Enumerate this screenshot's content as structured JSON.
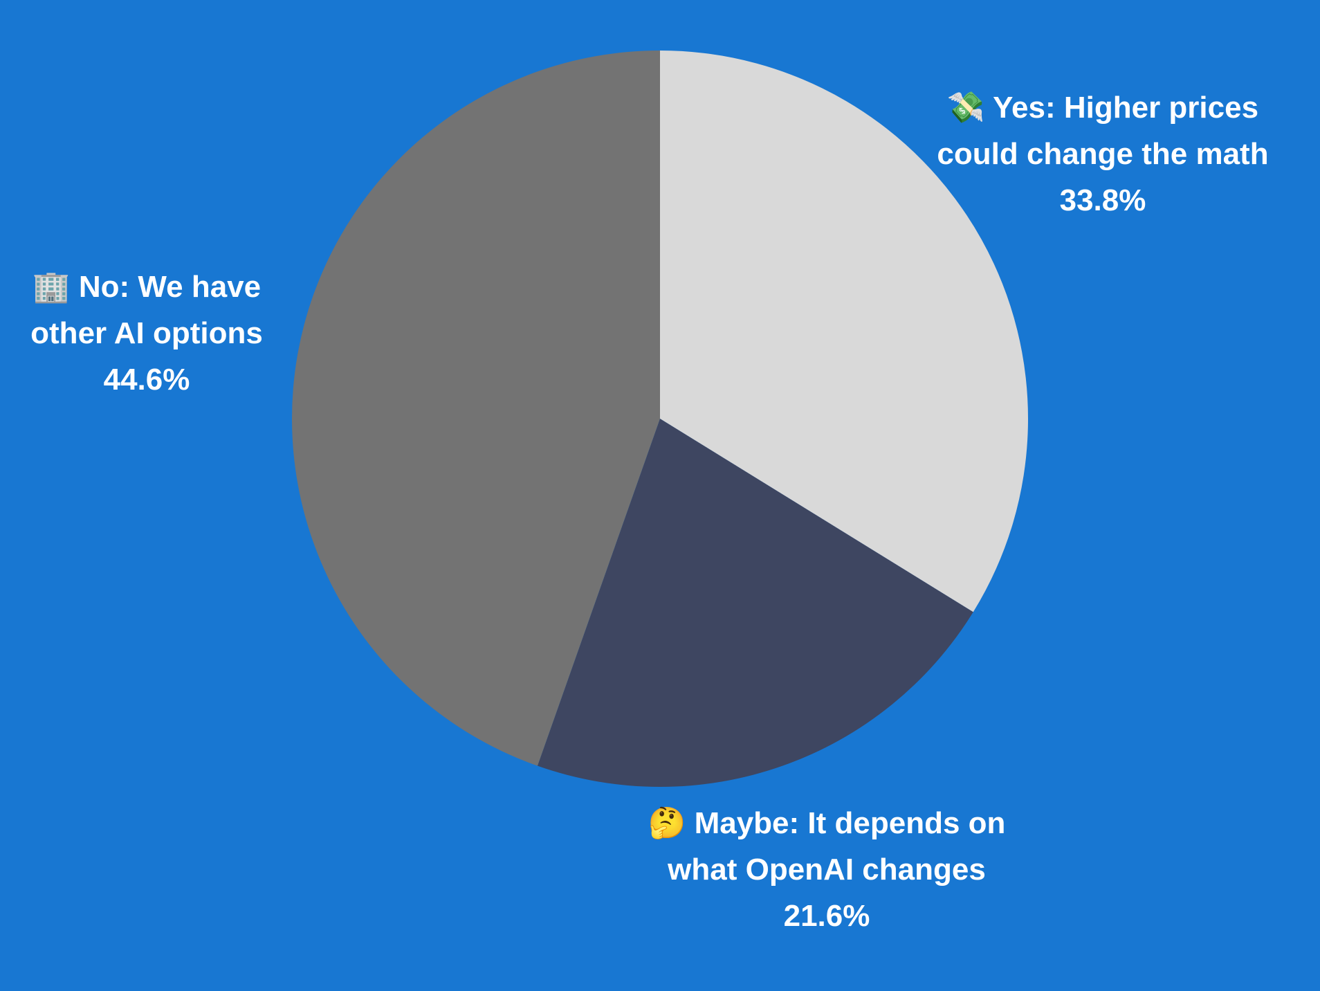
{
  "chart_data": {
    "type": "pie",
    "categories": [
      "💸 Yes: Higher prices could change the math",
      "🤔 Maybe: It depends on what OpenAI changes",
      "🏢 No: We have other AI options"
    ],
    "values": [
      33.8,
      21.6,
      44.6
    ],
    "value_labels": [
      "33.8%",
      "21.6%",
      "44.6%"
    ],
    "colors": [
      "#d9d9d9",
      "#3e4661",
      "#737373"
    ]
  }
}
